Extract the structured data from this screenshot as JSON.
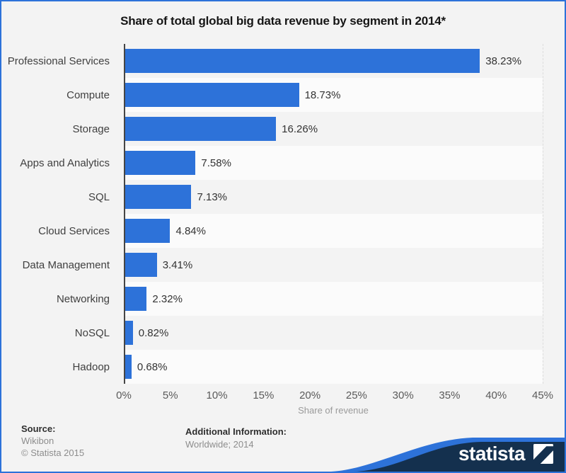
{
  "title": "Share of total global big data revenue by segment in 2014*",
  "chart_data": {
    "type": "bar",
    "orientation": "horizontal",
    "title": "Share of total global big data revenue by segment in 2014*",
    "categories": [
      "Professional Services",
      "Compute",
      "Storage",
      "Apps and Analytics",
      "SQL",
      "Cloud Services",
      "Data Management",
      "Networking",
      "NoSQL",
      "Hadoop"
    ],
    "values": [
      38.23,
      18.73,
      16.26,
      7.58,
      7.13,
      4.84,
      3.41,
      2.32,
      0.82,
      0.68
    ],
    "value_labels": [
      "38.23%",
      "18.73%",
      "16.26%",
      "7.58%",
      "7.13%",
      "4.84%",
      "3.41%",
      "2.32%",
      "0.82%",
      "0.68%"
    ],
    "xlabel": "Share of revenue",
    "ylabel": "",
    "xlim": [
      0,
      45
    ],
    "x_ticks": [
      "0%",
      "5%",
      "10%",
      "15%",
      "20%",
      "25%",
      "30%",
      "35%",
      "40%",
      "45%"
    ],
    "grid": "vertical-dashed",
    "legend": "none",
    "bar_color": "#2d72d9"
  },
  "footer": {
    "source_label": "Source:",
    "source_lines": [
      "Wikibon",
      "© Statista 2015"
    ],
    "additional_label": "Additional Information:",
    "additional_text": "Worldwide; 2014"
  },
  "branding": {
    "logo_text": "statista"
  },
  "colors": {
    "accent_blue": "#2d72d9",
    "navy": "#14304e",
    "page_bg": "#f3f3f3",
    "band_light": "#fbfbfb",
    "axis_line": "#454545"
  }
}
